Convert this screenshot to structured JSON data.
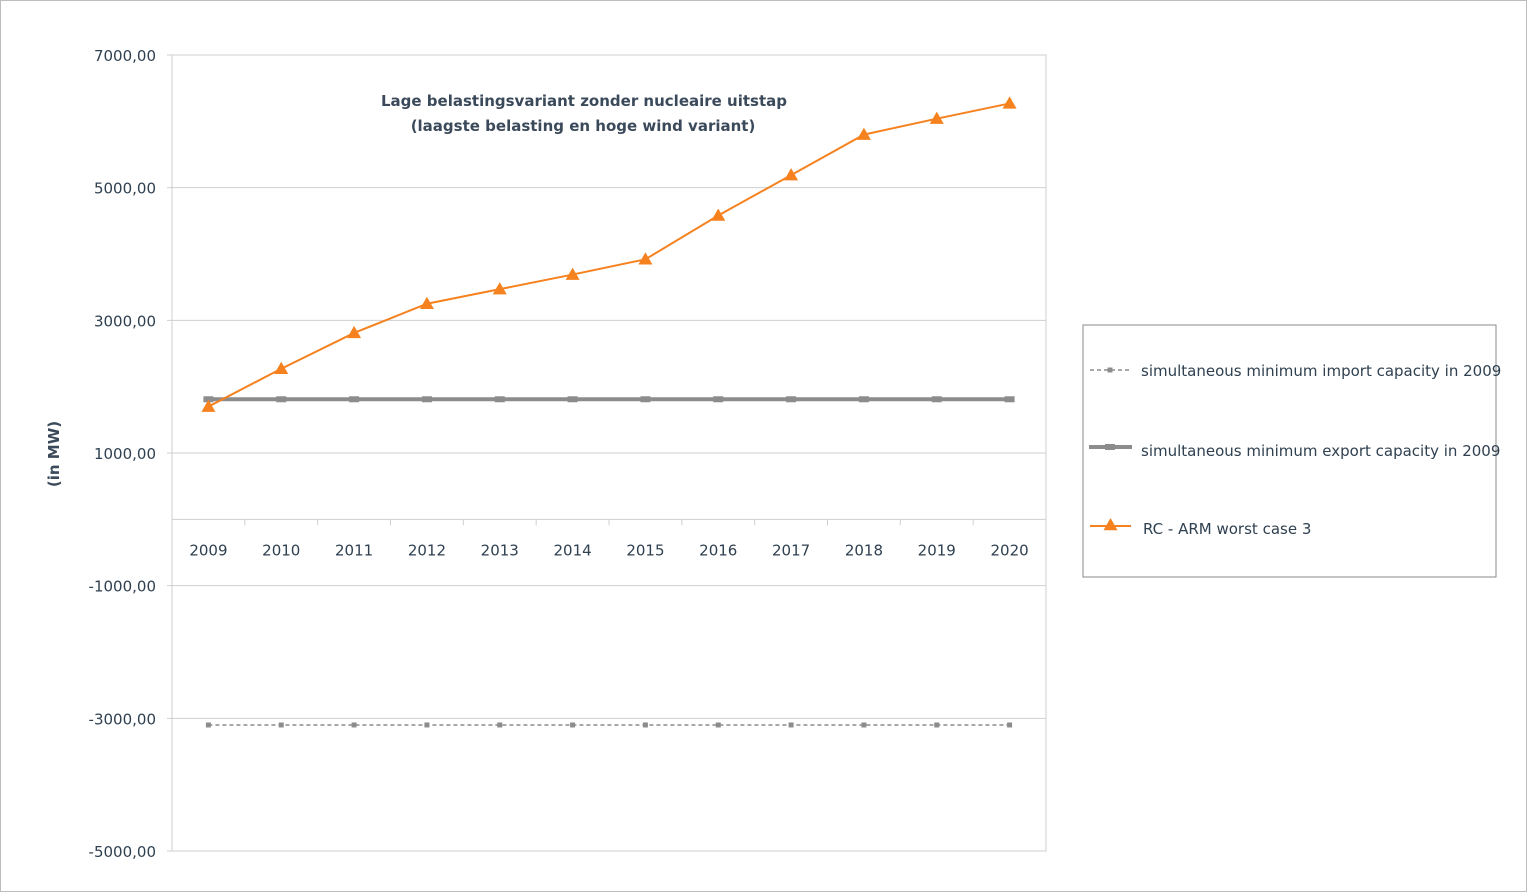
{
  "chart_data": {
    "type": "line",
    "title": "Lage belastingsvariant zonder nucleaire uitstap",
    "subtitle": "(laagste belasting en hoge wind variant)",
    "xlabel": "",
    "ylabel": "(in MW)",
    "ylim": [
      -5000,
      7000
    ],
    "y_ticks": [
      7000,
      5000,
      3000,
      1000,
      -1000,
      -3000,
      -5000
    ],
    "y_tick_labels": [
      "7000,00",
      "5000,00",
      "3000,00",
      "1000,00",
      "-1000,00",
      "-3000,00",
      "-5000,00"
    ],
    "axis_crossing": 0,
    "grid": true,
    "legend_position": "right",
    "categories": [
      "2009",
      "2010",
      "2011",
      "2012",
      "2013",
      "2014",
      "2015",
      "2016",
      "2017",
      "2018",
      "2019",
      "2020"
    ],
    "series": [
      {
        "name": "simultaneous minimum import capacity in 2009",
        "color": "#8c8c8c",
        "style": "dashed",
        "marker": "square",
        "values": [
          -3100,
          -3100,
          -3100,
          -3100,
          -3100,
          -3100,
          -3100,
          -3100,
          -3100,
          -3100,
          -3100,
          -3100
        ]
      },
      {
        "name": "simultaneous minimum export capacity in 2009",
        "color": "#8c8c8c",
        "style": "thick",
        "marker": "square",
        "values": [
          1810,
          1810,
          1810,
          1810,
          1810,
          1810,
          1810,
          1810,
          1810,
          1810,
          1810,
          1810
        ]
      },
      {
        "name": "RC -  ARM worst case 3",
        "color": "#f5821f",
        "style": "solid",
        "marker": "triangle",
        "values": [
          1700,
          2270,
          2810,
          3250,
          3470,
          3690,
          3920,
          4580,
          5190,
          5800,
          6040,
          6270
        ]
      }
    ]
  }
}
